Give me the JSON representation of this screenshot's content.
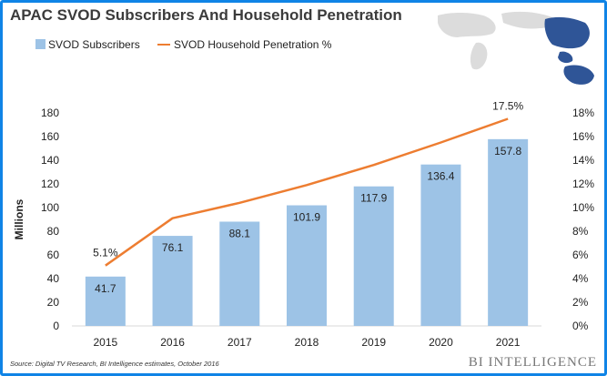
{
  "header": {
    "title": "APAC SVOD Subscribers And Household Penetration"
  },
  "footer": {
    "source": "Source: Digital TV Research, BI Intelligence estimates, October 2016",
    "brand": "BI INTELLIGENCE"
  },
  "chart_data": {
    "type": "bar",
    "title": "APAC SVOD Subscribers And Household Penetration",
    "categories": [
      "2015",
      "2016",
      "2017",
      "2018",
      "2019",
      "2020",
      "2021"
    ],
    "ylabel": "Millions",
    "ylim": [
      0,
      180
    ],
    "yticks": [
      0,
      20,
      40,
      60,
      80,
      100,
      120,
      140,
      160,
      180
    ],
    "y2lim": [
      0,
      18
    ],
    "y2ticks": [
      "0%",
      "2%",
      "4%",
      "6%",
      "8%",
      "10%",
      "12%",
      "14%",
      "16%",
      "18%"
    ],
    "legend_placement": "top-left",
    "grid": false,
    "series": [
      {
        "name": "SVOD Subscribers",
        "type": "bar",
        "axis": "left",
        "color": "#9dc3e6",
        "values": [
          41.7,
          76.1,
          88.1,
          101.9,
          117.9,
          136.4,
          157.8
        ],
        "labels": [
          "41.7",
          "76.1",
          "88.1",
          "101.9",
          "117.9",
          "136.4",
          "157.8"
        ]
      },
      {
        "name": "SVOD Household Penetration %",
        "type": "line",
        "axis": "right",
        "color": "#ed7d31",
        "values": [
          5.1,
          9.1,
          10.4,
          11.9,
          13.6,
          15.5,
          17.5
        ],
        "labels": [
          "5.1%",
          "",
          "",
          "",
          "",
          "",
          "17.5%"
        ]
      }
    ]
  }
}
